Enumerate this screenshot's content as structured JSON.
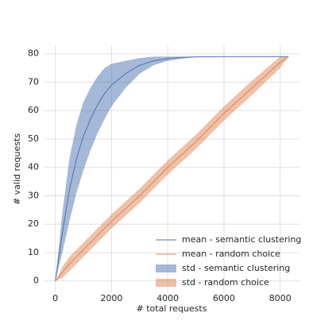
{
  "chart_data": {
    "type": "line",
    "xlabel": "# total requests",
    "ylabel": "# valid requests",
    "x": [
      0,
      250,
      500,
      750,
      1000,
      1250,
      1500,
      1750,
      2000,
      2500,
      3000,
      3500,
      4000,
      4500,
      5000,
      6000,
      7000,
      8000,
      8300
    ],
    "series": [
      {
        "name": "mean - semantic clustering",
        "kind": "line",
        "color": "#4c72b0",
        "values": [
          0,
          17,
          32,
          43,
          51,
          57,
          62,
          66,
          69,
          73,
          76,
          77.5,
          78.3,
          78.7,
          78.9,
          79,
          79,
          79,
          79
        ]
      },
      {
        "name": "mean - random choice",
        "kind": "line",
        "color": "#dd8452",
        "values": [
          0,
          3,
          6,
          8.5,
          11,
          13.5,
          16,
          18.5,
          21,
          25.5,
          30,
          35,
          40,
          44.5,
          49,
          59,
          68,
          77,
          79
        ]
      },
      {
        "name": "std - semantic clustering",
        "kind": "band",
        "color": "#4c72b0",
        "upper": [
          0,
          24,
          43,
          55,
          63,
          68,
          72,
          75,
          76.5,
          77.5,
          78.5,
          79,
          79,
          79,
          79,
          79,
          79,
          79,
          79
        ],
        "lower": [
          0,
          10,
          21,
          31,
          39,
          46,
          52,
          57,
          61.5,
          68,
          73,
          76,
          77.5,
          78.3,
          78.8,
          79,
          79,
          79,
          79
        ]
      },
      {
        "name": "std - random choice",
        "kind": "band",
        "color": "#dd8452",
        "upper": [
          0,
          5,
          8.5,
          11,
          13.5,
          16,
          18.5,
          21,
          23.5,
          28,
          32.5,
          37.5,
          42.5,
          47,
          51.5,
          61.5,
          70.5,
          79,
          79
        ],
        "lower": [
          0,
          1,
          3.5,
          6,
          8.5,
          11,
          13.5,
          16,
          18.5,
          23,
          27.5,
          32.5,
          37.5,
          42,
          46.5,
          56.5,
          65.5,
          75,
          79
        ]
      }
    ],
    "xlim": [
      -415,
      8715
    ],
    "ylim": [
      -4,
      83
    ],
    "xticks": [
      0,
      2000,
      4000,
      6000,
      8000
    ],
    "yticks": [
      0,
      10,
      20,
      30,
      40,
      50,
      60,
      70,
      80
    ],
    "grid": true,
    "legend": "lower right"
  }
}
